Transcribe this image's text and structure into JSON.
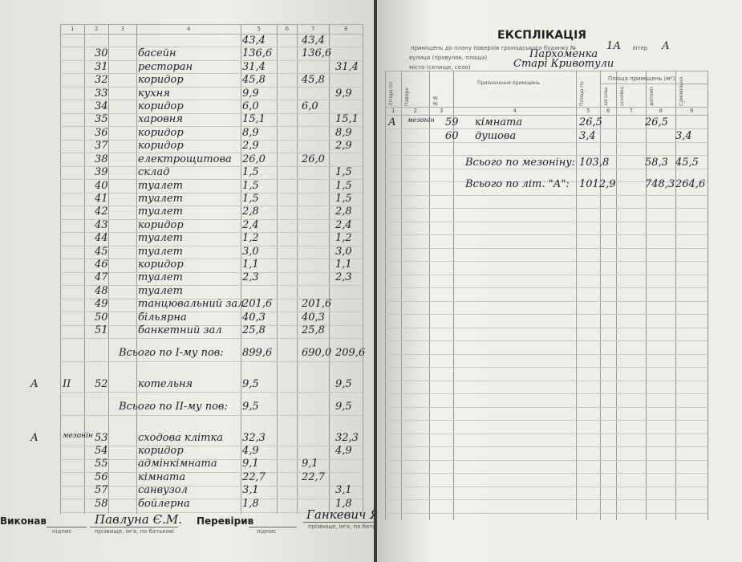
{
  "left_page": {
    "column_numbers": [
      "1",
      "2",
      "3",
      "4",
      "5",
      "6",
      "7",
      "8"
    ],
    "rows": [
      {
        "total": "43,4",
        "main": "43,4"
      },
      {
        "no": "30",
        "name": "басейн",
        "total": "136,6",
        "main": "136,6"
      },
      {
        "no": "31",
        "name": "ресторан",
        "total": "31,4",
        "aux": "31,4"
      },
      {
        "no": "32",
        "name": "коридор",
        "total": "45,8",
        "main": "45,8"
      },
      {
        "no": "33",
        "name": "кухня",
        "total": "9,9",
        "aux": "9,9"
      },
      {
        "no": "34",
        "name": "коридор",
        "total": "6,0",
        "main": "6,0"
      },
      {
        "no": "35",
        "name": "харовня",
        "total": "15,1",
        "aux": "15,1"
      },
      {
        "no": "36",
        "name": "коридор",
        "total": "8,9",
        "aux": "8,9"
      },
      {
        "no": "37",
        "name": "коридор",
        "total": "2,9",
        "aux": "2,9"
      },
      {
        "no": "38",
        "name": "електрощитова",
        "total": "26,0",
        "main": "26,0"
      },
      {
        "no": "39",
        "name": "склад",
        "total": "1,5",
        "aux": "1,5"
      },
      {
        "no": "40",
        "name": "туалет",
        "total": "1,5",
        "aux": "1,5"
      },
      {
        "no": "41",
        "name": "туалет",
        "total": "1,5",
        "aux": "1,5"
      },
      {
        "no": "42",
        "name": "туалет",
        "total": "2,8",
        "aux": "2,8"
      },
      {
        "no": "43",
        "name": "коридор",
        "total": "2,4",
        "aux": "2,4"
      },
      {
        "no": "44",
        "name": "туалет",
        "total": "1,2",
        "aux": "1,2"
      },
      {
        "no": "45",
        "name": "туалет",
        "total": "3,0",
        "aux": "3,0"
      },
      {
        "no": "46",
        "name": "коридор",
        "total": "1,1",
        "aux": "1,1"
      },
      {
        "no": "47",
        "name": "туалет",
        "total": "2,3",
        "aux": "2,3"
      },
      {
        "no": "48",
        "name": "туалет"
      },
      {
        "no": "49",
        "name": "танцювальний зал",
        "total": "201,6",
        "main": "201,6"
      },
      {
        "no": "50",
        "name": "більярна",
        "total": "40,3",
        "main": "40,3"
      },
      {
        "no": "51",
        "name": "банкетний зал",
        "total": "25,8",
        "main": "25,8"
      },
      {
        "label": "Всього по І-му пов:",
        "total": "899,6",
        "main": "690,0",
        "aux": "209,6"
      },
      {
        "lit": "А",
        "floor": "ІІ",
        "no": "52",
        "name": "котельня",
        "total": "9,5",
        "aux": "9,5"
      },
      {
        "label": "Всього по ІІ-му пов:",
        "total": "9,5",
        "aux": "9,5"
      },
      {
        "lit": "А",
        "floor": "мезонін",
        "no": "53",
        "name": "сходова клітка",
        "total": "32,3",
        "aux": "32,3"
      },
      {
        "no": "54",
        "name": "коридор",
        "total": "4,9",
        "aux": "4,9"
      },
      {
        "no": "55",
        "name": "адмінкімната",
        "total": "9,1",
        "main": "9,1"
      },
      {
        "no": "56",
        "name": "кімната",
        "total": "22,7",
        "main": "22,7"
      },
      {
        "no": "57",
        "name": "санвузол",
        "total": "3,1",
        "aux": "3,1"
      },
      {
        "no": "58",
        "name": "бойлерна",
        "total": "1,8",
        "aux": "1,8"
      }
    ],
    "footer": {
      "executed": "Виконав",
      "executed_sign": "підпис",
      "executed_name": "Павлуна Є.М.",
      "executed_caption": "прізвище, ім'я, по батькові",
      "checked": "Перевірив",
      "checked_sign": "підпис",
      "checked_name": "Ганкевич Я.М.",
      "checked_caption": "прізвище, ім'я, по батькові"
    }
  },
  "right_page": {
    "title": "ЕКСПЛІКАЦІЯ",
    "line1": "приміщень до плану поверхів громадського будинку №",
    "building_no": "1А",
    "litera_label": "літер",
    "litera": "А",
    "street_label": "вулиця (провулок, площа)",
    "street": "Пархоменка",
    "city_label": "місто (селище, село)",
    "city": "Старі Кривотули",
    "headers": [
      "Літера по плану",
      "Поверх",
      "№№ приміщень",
      "Призначення приміщень",
      "Площа по внутрішньому обміру",
      "загальна площа",
      "основна",
      "допоміжна",
      "Самовільно збудована або перебудована площа"
    ],
    "group_header": "Площа приміщень (м²)",
    "column_numbers": [
      "1",
      "2",
      "3",
      "4",
      "5",
      "6",
      "7",
      "8",
      "9"
    ],
    "rows": [
      {
        "lit": "А",
        "floor": "мезонін",
        "no": "59",
        "name": "кімната",
        "total": "26,5",
        "main": "26,5"
      },
      {
        "no": "60",
        "name": "душова",
        "total": "3,4",
        "aux": "3,4"
      },
      {
        "label": "Всього по мезоніну:",
        "total": "103,8",
        "main": "58,3",
        "aux": "45,5"
      },
      {
        "label": "Всього по літ. \"А\":",
        "total": "1012,9",
        "main": "748,3",
        "aux": "264,6"
      }
    ]
  }
}
